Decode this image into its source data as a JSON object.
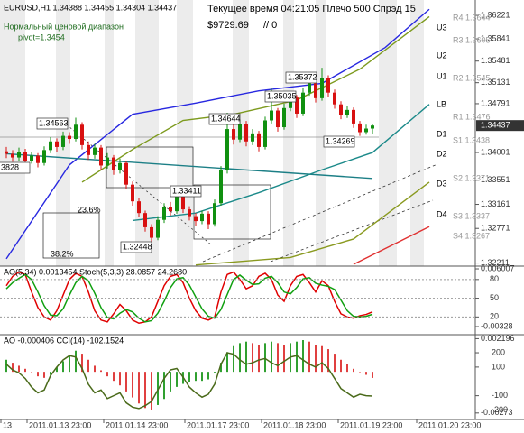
{
  "header": {
    "trade_info": "Текущее время 04:21:05 Плечо 500 Спрэд 15",
    "balance": "$9729.69",
    "orders": "// 0",
    "range_name": "Нормальный ценовой диапазон",
    "pivot": "pivot=1.3454"
  },
  "chart_data": [
    {
      "type": "candlestick",
      "title": "EURUSD,H1  1.34388 1.34455 1.34304 1.34437",
      "up_color": "#109010",
      "down_color": "#d81010",
      "open": [
        1.3402,
        1.3398,
        1.3392,
        1.3401,
        1.3387,
        1.3395,
        1.3383,
        1.3404,
        1.3418,
        1.3409,
        1.3427,
        1.3422,
        1.3445,
        1.3412,
        1.3396,
        1.3408,
        1.3379,
        1.3392,
        1.3371,
        1.3383,
        1.3348,
        1.3321,
        1.3302,
        1.3279,
        1.3262,
        1.3291,
        1.3312,
        1.3305,
        1.3331,
        1.3308,
        1.3297,
        1.3289,
        1.3301,
        1.3284,
        1.3318,
        1.3371,
        1.3438,
        1.3421,
        1.3446,
        1.3418,
        1.3431,
        1.3409,
        1.3452,
        1.3468,
        1.3441,
        1.3472,
        1.3489,
        1.3463,
        1.3497,
        1.3512,
        1.3488,
        1.3521,
        1.3497,
        1.3478,
        1.3461,
        1.3469,
        1.3447,
        1.3433,
        1.34388
      ],
      "high": [
        1.3409,
        1.3404,
        1.3408,
        1.3406,
        1.3401,
        1.3399,
        1.341,
        1.3425,
        1.3423,
        1.3434,
        1.3433,
        1.34563,
        1.3449,
        1.3418,
        1.3414,
        1.3412,
        1.3399,
        1.3396,
        1.339,
        1.3387,
        1.3353,
        1.3327,
        1.3306,
        1.3284,
        1.3297,
        1.3318,
        1.332,
        1.33411,
        1.3335,
        1.3313,
        1.3302,
        1.3306,
        1.3305,
        1.3324,
        1.3378,
        1.34644,
        1.3446,
        1.3453,
        1.3451,
        1.3438,
        1.3435,
        1.3458,
        1.35035,
        1.3472,
        1.3479,
        1.3496,
        1.3493,
        1.3504,
        1.3519,
        1.3516,
        1.35372,
        1.3525,
        1.3502,
        1.3483,
        1.3475,
        1.3473,
        1.3451,
        1.3445,
        1.34455
      ],
      "low": [
        1.3391,
        1.3385,
        1.3386,
        1.338,
        1.3382,
        1.3376,
        1.3379,
        1.3399,
        1.3401,
        1.3404,
        1.3414,
        1.3418,
        1.3405,
        1.3388,
        1.339,
        1.3372,
        1.3374,
        1.3364,
        1.3366,
        1.3341,
        1.3314,
        1.3295,
        1.3272,
        1.32448,
        1.3258,
        1.3286,
        1.3298,
        1.3301,
        1.3302,
        1.329,
        1.3281,
        1.3284,
        1.3276,
        1.328,
        1.3314,
        1.3366,
        1.3413,
        1.3417,
        1.341,
        1.3412,
        1.3402,
        1.3405,
        1.3447,
        1.3434,
        1.3437,
        1.3467,
        1.3456,
        1.3459,
        1.3492,
        1.3481,
        1.3484,
        1.349,
        1.3471,
        1.3454,
        1.3456,
        1.344,
        1.34269,
        1.3429,
        1.34304
      ],
      "close": [
        1.3398,
        1.3392,
        1.3401,
        1.3387,
        1.3395,
        1.3383,
        1.3404,
        1.3418,
        1.3409,
        1.3427,
        1.3422,
        1.3445,
        1.3412,
        1.3396,
        1.3408,
        1.3379,
        1.3392,
        1.3371,
        1.3383,
        1.3348,
        1.3321,
        1.3302,
        1.3279,
        1.3262,
        1.3291,
        1.3312,
        1.3305,
        1.3331,
        1.3308,
        1.3297,
        1.3289,
        1.3301,
        1.3284,
        1.3318,
        1.3371,
        1.3438,
        1.3421,
        1.3446,
        1.3418,
        1.3431,
        1.3409,
        1.3452,
        1.3468,
        1.3441,
        1.3472,
        1.3489,
        1.3463,
        1.3497,
        1.3512,
        1.3488,
        1.3521,
        1.3497,
        1.3478,
        1.3461,
        1.3469,
        1.3447,
        1.3433,
        1.34388,
        1.34437
      ],
      "lines": [
        {
          "color": "#2828e0",
          "x": [
            0,
            10,
            20,
            30,
            40,
            50,
            60,
            67
          ],
          "values": [
            1.3228,
            1.338,
            1.3462,
            1.348,
            1.35,
            1.3512,
            1.357,
            1.3632
          ]
        },
        {
          "color": "#7d9a1e",
          "x": [
            12,
            20,
            28,
            36,
            46,
            56,
            67
          ],
          "values": [
            1.3352,
            1.3405,
            1.3452,
            1.3462,
            1.3485,
            1.3535,
            1.362
          ]
        },
        {
          "color": "#1c7f86",
          "x": [
            0,
            58
          ],
          "values": [
            1.3398,
            1.3358
          ]
        },
        {
          "color": "#1c8a8a",
          "x": [
            20,
            30,
            40,
            50,
            58,
            67
          ],
          "values": [
            1.329,
            1.3302,
            1.3335,
            1.3372,
            1.34,
            1.3478
          ]
        },
        {
          "color": "#8a9a20",
          "x": [
            30,
            45,
            55,
            67
          ],
          "values": [
            1.3218,
            1.323,
            1.326,
            1.3352
          ]
        },
        {
          "color": "#e03030",
          "x": [
            55,
            67
          ],
          "values": [
            1.3219,
            1.328
          ]
        }
      ],
      "ylim": [
        1.3219,
        1.3647
      ],
      "yticks": [
        1.36221,
        1.35841,
        1.35481,
        1.35131,
        1.34791,
        1.34001,
        1.33551,
        1.33161,
        1.32771,
        1.32211
      ],
      "current_price": 1.34437
    },
    {
      "type": "line",
      "title": "AO(5,34) 0.0013454  Stoch(5,3,3) 28.0857 24.2680",
      "series": [
        {
          "color": "#e00000",
          "values": [
            70,
            85,
            92,
            88,
            60,
            35,
            20,
            15,
            30,
            55,
            80,
            90,
            85,
            60,
            30,
            15,
            12,
            25,
            40,
            30,
            15,
            10,
            12,
            20,
            45,
            70,
            85,
            88,
            75,
            50,
            30,
            18,
            15,
            20,
            60,
            88,
            92,
            80,
            65,
            70,
            85,
            90,
            80,
            55,
            45,
            70,
            85,
            88,
            75,
            60,
            78,
            70,
            45,
            25,
            20,
            18,
            22,
            24,
            28.0857
          ]
        },
        {
          "color": "#10a010",
          "values": [
            65,
            75,
            82,
            88,
            80,
            60,
            38,
            23,
            22,
            33,
            55,
            75,
            85,
            78,
            58,
            35,
            19,
            17,
            26,
            32,
            28,
            18,
            12,
            14,
            26,
            45,
            67,
            81,
            83,
            71,
            52,
            33,
            21,
            18,
            32,
            56,
            80,
            87,
            79,
            72,
            73,
            82,
            85,
            75,
            60,
            57,
            67,
            81,
            83,
            74,
            71,
            69,
            64,
            47,
            30,
            21,
            20,
            21,
            24.268
          ]
        }
      ],
      "ylim": [
        -7,
        100
      ],
      "yticks": [
        20,
        50,
        80
      ],
      "y2lim": [
        -0.00444,
        0.0063
      ],
      "y2ticks": [
        -0.00328,
        0.006007
      ]
    },
    {
      "type": "combo",
      "title": "AO -0.000406  CCI(14) -102.1524",
      "series": [
        {
          "type": "bar",
          "axis": "y2",
          "up_color": "#30a030",
          "down_color": "#e04040",
          "values": [
            0.0008,
            0.0006,
            0.0004,
            0.0002,
            0.0,
            -0.0003,
            -0.0004,
            -0.0002,
            0.0003,
            0.0007,
            0.0011,
            0.0014,
            0.0012,
            0.0008,
            0.0004,
            0.0001,
            -0.0003,
            -0.0006,
            -0.0009,
            -0.0013,
            -0.0017,
            -0.0021,
            -0.0024,
            -0.0025,
            -0.0022,
            -0.0018,
            -0.0013,
            -0.001,
            -0.0008,
            -0.0007,
            -0.0006,
            -0.0006,
            -0.0005,
            -0.0001,
            0.0006,
            0.0013,
            0.0017,
            0.0019,
            0.002,
            0.0019,
            0.0018,
            0.0019,
            0.002,
            0.0019,
            0.0018,
            0.0019,
            0.002,
            0.0021,
            0.002,
            0.0018,
            0.0017,
            0.0015,
            0.0012,
            0.0008,
            0.0005,
            0.0002,
            0.0,
            -0.0002,
            -0.000406
          ]
        },
        {
          "type": "line",
          "color": "#4a6a1a",
          "values": [
            120,
            80,
            60,
            20,
            -40,
            -80,
            -60,
            40,
            100,
            150,
            180,
            170,
            90,
            -20,
            -80,
            -60,
            -120,
            -100,
            -80,
            -150,
            -180,
            -190,
            -170,
            -140,
            -60,
            20,
            80,
            90,
            30,
            -40,
            -80,
            -110,
            -90,
            -20,
            120,
            200,
            190,
            150,
            120,
            130,
            150,
            160,
            130,
            110,
            140,
            170,
            180,
            150,
            120,
            100,
            130,
            90,
            20,
            -50,
            -80,
            -110,
            -90,
            -100,
            -102.1524
          ]
        }
      ],
      "ylim": [
        -260,
        320
      ],
      "yticks": [
        -200,
        -100,
        100,
        200
      ],
      "y2lim": [
        -0.0031,
        0.0024
      ],
      "y2ticks": [
        -0.00273,
        0.002196
      ]
    }
  ],
  "annotations": [
    "1.34563",
    "1.35372",
    "1.35035",
    "1.34644",
    "1.34269",
    "1.33411",
    "1.32448",
    "3828",
    "23.6%",
    "38.2%"
  ],
  "levels": [
    "R4 1.3644",
    "U3",
    "R3 1.3605",
    "U2",
    "R2 1.3545",
    "U1",
    "LB",
    "R1 1.3476",
    "D1",
    "S1 1.3438",
    "D2",
    "S2 1.3371",
    "D3",
    "S3 1.3337",
    "D4",
    "S4 1.3267"
  ],
  "x_labels": [
    "13",
    "2011.01.13 23:00",
    "2011.01.14 23:00",
    "2011.01.17 23:00",
    "2011.01.18 23:00",
    "2011.01.19 23:00",
    "2011.01.20 23:00"
  ]
}
